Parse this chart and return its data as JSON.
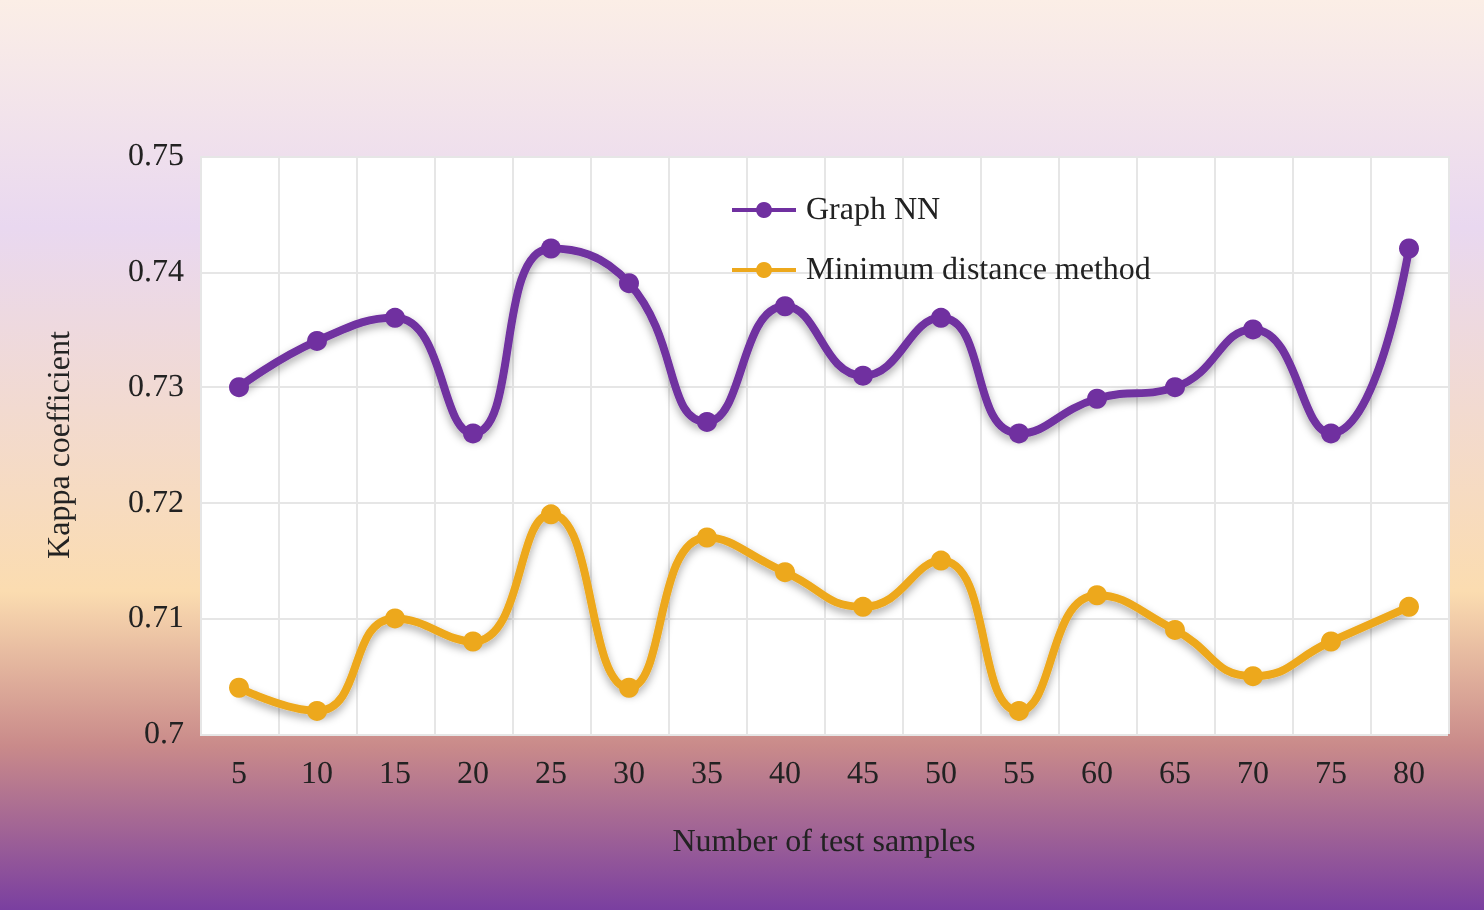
{
  "chart_data": {
    "type": "line",
    "xlabel": "Number of test samples",
    "ylabel": "Kappa coefficient",
    "categories": [
      "5",
      "10",
      "15",
      "20",
      "25",
      "30",
      "35",
      "40",
      "45",
      "50",
      "55",
      "60",
      "65",
      "70",
      "75",
      "80"
    ],
    "series": [
      {
        "name": "Graph NN",
        "color": "#7030a0",
        "values": [
          0.73,
          0.734,
          0.736,
          0.726,
          0.742,
          0.739,
          0.727,
          0.737,
          0.731,
          0.736,
          0.726,
          0.729,
          0.73,
          0.735,
          0.726,
          0.742
        ]
      },
      {
        "name": "Minimum distance method",
        "color": "#eda81c",
        "values": [
          0.704,
          0.702,
          0.71,
          0.708,
          0.719,
          0.704,
          0.717,
          0.714,
          0.711,
          0.715,
          0.702,
          0.712,
          0.709,
          0.705,
          0.708,
          0.711
        ]
      }
    ],
    "ylim": [
      0.7,
      0.75
    ],
    "yticks": [
      0.7,
      0.71,
      0.72,
      0.73,
      0.74,
      0.75
    ],
    "grid": true,
    "legend": "top",
    "marker": "circle",
    "line_style": "solid"
  }
}
